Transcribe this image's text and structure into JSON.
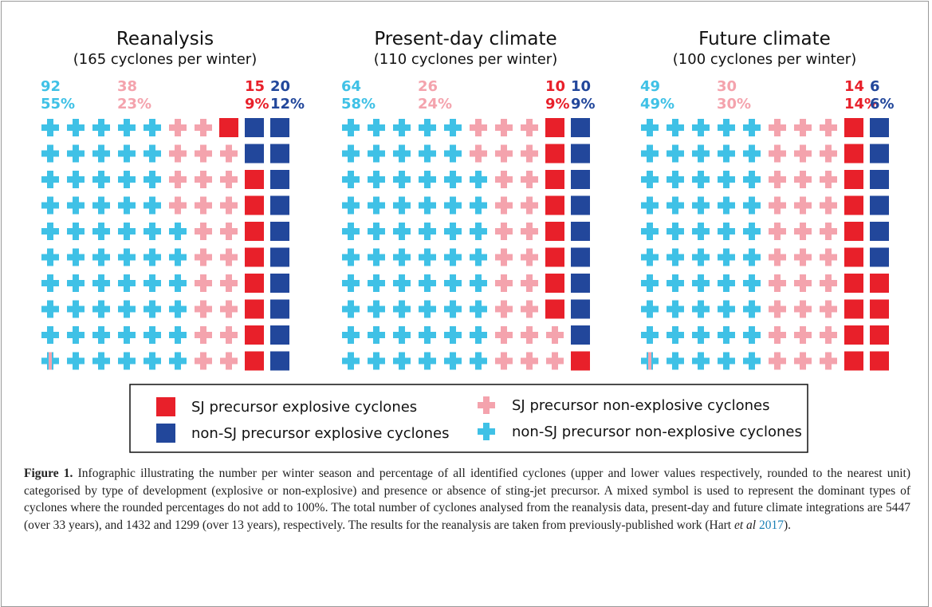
{
  "legend": [
    {
      "name": "non-SJ precursor non-explosive cyclones",
      "color": "#3fc1e6",
      "shape": "plus"
    },
    {
      "name": "SJ precursor non-explosive cyclones",
      "color": "#f4a3ad",
      "shape": "plus"
    },
    {
      "name": "SJ precursor explosive cyclones",
      "color": "#e8202a",
      "shape": "square"
    },
    {
      "name": "non-SJ precursor explosive cyclones",
      "color": "#22479b",
      "shape": "square"
    }
  ],
  "chart_data": [
    {
      "type": "waffle",
      "title": "Reanalysis",
      "subtitle": "(165 cyclones per winter)",
      "counts": [
        92,
        38,
        15,
        20
      ],
      "values": [
        55,
        23,
        9,
        12
      ],
      "value_labels": [
        "55%",
        "23%",
        "9%",
        "12%"
      ]
    },
    {
      "type": "waffle",
      "title": "Present-day climate",
      "subtitle": "(110 cyclones per winter)",
      "counts": [
        64,
        26,
        10,
        10
      ],
      "values": [
        58,
        24,
        9,
        9
      ],
      "value_labels": [
        "58%",
        "24%",
        "9%",
        "9%"
      ]
    },
    {
      "type": "waffle",
      "title": "Future climate",
      "subtitle": "(100 cyclones per winter)",
      "counts": [
        49,
        30,
        14,
        6
      ],
      "values": [
        49,
        30,
        14,
        6
      ],
      "value_labels": [
        "49%",
        "30%",
        "14%",
        "6%"
      ]
    }
  ],
  "caption": {
    "label": "Figure 1.",
    "text": "Infographic illustrating the number per winter season and percentage of all identified cyclones (upper and lower values respectively, rounded to the nearest unit) categorised by type of development (explosive or non-explosive) and presence or absence of sting-jet precursor. A mixed symbol is used to represent the dominant types of cyclones where the rounded percentages do not add to 100%. The total number of cyclones analysed from the reanalysis data, present-day and future climate integrations are 5447 (over 33 years), and 1432 and 1299 (over 13 years), respectively. The results for the reanalysis are taken from previously-published work (Hart",
    "italic": "et al",
    "link": "2017",
    "end": ")."
  }
}
